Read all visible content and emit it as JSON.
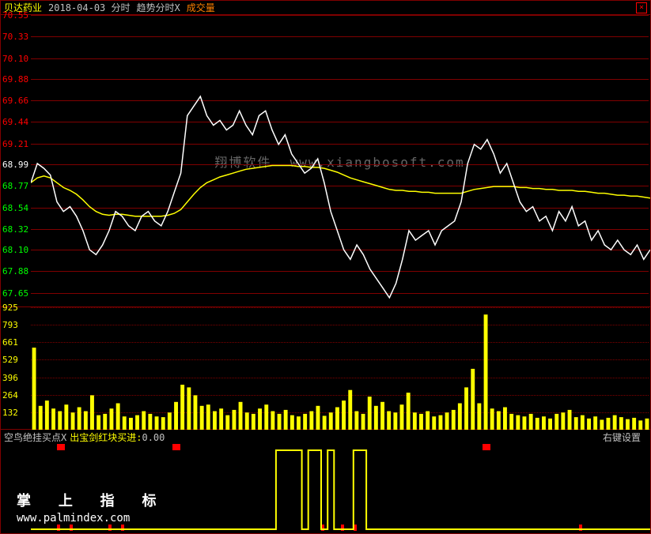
{
  "header": {
    "stock_name": "贝达药业",
    "date": "2018-04-03 分时",
    "trend_label": "趋势分时X",
    "volume_label": "成交量",
    "stock_color": "#ffff00",
    "date_color": "#c0c0c0",
    "trend_color": "#c0c0c0",
    "volume_color": "#ff8000"
  },
  "price_chart": {
    "type": "line",
    "ylim": [
      67.5,
      70.55
    ],
    "yticks": [
      70.55,
      70.33,
      70.1,
      69.88,
      69.66,
      69.44,
      69.21,
      68.99,
      68.77,
      68.54,
      68.32,
      68.1,
      67.88,
      67.65
    ],
    "ytick_colors": [
      "#ff0000",
      "#ff0000",
      "#ff0000",
      "#ff0000",
      "#ff0000",
      "#ff0000",
      "#ff0000",
      "#ffffff",
      "#00ff00",
      "#00ff00",
      "#00ff00",
      "#00ff00",
      "#00ff00",
      "#00ff00"
    ],
    "grid_color": "#800000",
    "background": "#000000",
    "price_line_color": "#ffffff",
    "ma_line_color": "#ffff00",
    "price_values": [
      68.8,
      69.0,
      68.95,
      68.88,
      68.6,
      68.5,
      68.55,
      68.45,
      68.3,
      68.1,
      68.05,
      68.15,
      68.3,
      68.5,
      68.45,
      68.35,
      68.3,
      68.45,
      68.5,
      68.4,
      68.35,
      68.5,
      68.7,
      68.9,
      69.5,
      69.6,
      69.7,
      69.5,
      69.4,
      69.45,
      69.35,
      69.4,
      69.55,
      69.4,
      69.3,
      69.5,
      69.55,
      69.35,
      69.2,
      69.3,
      69.1,
      69.0,
      68.9,
      68.95,
      69.05,
      68.8,
      68.5,
      68.3,
      68.1,
      68.0,
      68.15,
      68.05,
      67.9,
      67.8,
      67.7,
      67.6,
      67.75,
      68.0,
      68.3,
      68.2,
      68.25,
      68.3,
      68.15,
      68.3,
      68.35,
      68.4,
      68.6,
      69.0,
      69.2,
      69.15,
      69.25,
      69.1,
      68.9,
      69.0,
      68.8,
      68.6,
      68.5,
      68.55,
      68.4,
      68.45,
      68.3,
      68.5,
      68.4,
      68.55,
      68.35,
      68.4,
      68.2,
      68.3,
      68.15,
      68.1,
      68.2,
      68.1,
      68.05,
      68.15,
      68.0,
      68.1
    ],
    "ma_values": [
      68.8,
      68.85,
      68.87,
      68.85,
      68.8,
      68.75,
      68.72,
      68.68,
      68.62,
      68.55,
      68.5,
      68.47,
      68.46,
      68.47,
      68.47,
      68.46,
      68.45,
      68.45,
      68.45,
      68.45,
      68.45,
      68.46,
      68.48,
      68.52,
      68.6,
      68.68,
      68.75,
      68.8,
      68.83,
      68.86,
      68.88,
      68.9,
      68.92,
      68.94,
      68.95,
      68.96,
      68.97,
      68.98,
      68.98,
      68.98,
      68.98,
      68.97,
      68.97,
      68.96,
      68.96,
      68.95,
      68.93,
      68.91,
      68.88,
      68.85,
      68.83,
      68.81,
      68.79,
      68.77,
      68.75,
      68.73,
      68.72,
      68.72,
      68.71,
      68.71,
      68.7,
      68.7,
      68.69,
      68.69,
      68.69,
      68.69,
      68.69,
      68.71,
      68.73,
      68.74,
      68.75,
      68.76,
      68.76,
      68.76,
      68.76,
      68.75,
      68.75,
      68.74,
      68.74,
      68.73,
      68.73,
      68.72,
      68.72,
      68.72,
      68.71,
      68.71,
      68.7,
      68.69,
      68.69,
      68.68,
      68.67,
      68.67,
      68.66,
      68.66,
      68.65,
      68.64
    ],
    "line_width": 1.5
  },
  "volume_chart": {
    "type": "bar",
    "ylim": [
      0,
      925
    ],
    "yticks": [
      925,
      793,
      661,
      529,
      396,
      264,
      132
    ],
    "ytick_color": "#ffff00",
    "bar_color": "#ffff00",
    "grid_color": "#800000",
    "values": [
      620,
      180,
      220,
      160,
      140,
      190,
      130,
      170,
      140,
      260,
      110,
      120,
      160,
      200,
      100,
      90,
      110,
      140,
      120,
      100,
      95,
      130,
      210,
      340,
      320,
      260,
      180,
      190,
      140,
      160,
      110,
      150,
      210,
      130,
      120,
      160,
      190,
      140,
      120,
      150,
      110,
      100,
      120,
      140,
      180,
      105,
      130,
      170,
      220,
      300,
      140,
      120,
      250,
      180,
      210,
      140,
      130,
      190,
      280,
      130,
      120,
      140,
      100,
      110,
      130,
      150,
      200,
      320,
      460,
      200,
      870,
      160,
      140,
      170,
      120,
      110,
      100,
      120,
      90,
      100,
      85,
      120,
      130,
      150,
      95,
      110,
      85,
      100,
      75,
      90,
      110,
      95,
      80,
      90,
      70,
      85
    ]
  },
  "watermark": {
    "text_cn": "翔博软件",
    "text_url": "www.xiangbosoft.com",
    "color": "#707070"
  },
  "indicator": {
    "label1": "空鸟绝挂买点X",
    "label2": "出宝剑红块买进",
    "value": "0.00",
    "right_label": "右键设置",
    "label1_color": "#c0c0c0",
    "label2_color": "#ffff00",
    "value_color": "#c0c0c0",
    "signal_color": "#ffff00",
    "signal_pulses": [
      [
        38,
        42
      ],
      [
        43,
        45
      ],
      [
        46,
        47
      ],
      [
        50,
        52
      ]
    ],
    "red_top_markers": [
      4,
      22,
      70
    ],
    "red_bottom_markers": [
      4,
      6,
      12,
      14,
      45,
      48,
      50,
      85
    ]
  },
  "footer": {
    "title": "掌 上 指 标",
    "url": "www.palmindex.com",
    "color": "#ffffff"
  }
}
